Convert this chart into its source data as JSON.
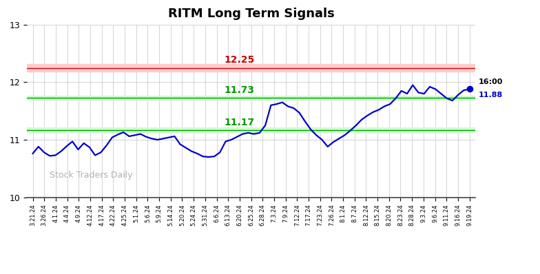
{
  "title": "RITM Long Term Signals",
  "ylim": [
    10,
    13
  ],
  "yticks": [
    10,
    11,
    12,
    13
  ],
  "resistance_level": 12.25,
  "support_level1": 11.73,
  "support_level2": 11.17,
  "last_price": 11.88,
  "last_time": "16:00",
  "resistance_color": "#cc0000",
  "support_color": "#009900",
  "resistance_band_color": "#ffcccc",
  "support_band_color": "#ccffcc",
  "line_color": "#0000cc",
  "dot_color": "#0000cc",
  "watermark": "Stock Traders Daily",
  "background_color": "#ffffff",
  "grid_color": "#cccccc",
  "x_labels": [
    "3.21.24",
    "3.26.24",
    "4.1.24",
    "4.4.24",
    "4.9.24",
    "4.12.24",
    "4.17.24",
    "4.22.24",
    "4.25.24",
    "5.1.24",
    "5.6.24",
    "5.9.24",
    "5.14.24",
    "5.20.24",
    "5.24.24",
    "5.31.24",
    "6.6.24",
    "6.13.24",
    "6.20.24",
    "6.25.24",
    "6.28.24",
    "7.3.24",
    "7.9.24",
    "7.12.24",
    "7.17.24",
    "7.23.24",
    "7.26.24",
    "8.1.24",
    "8.7.24",
    "8.12.24",
    "8.15.24",
    "8.20.24",
    "8.23.24",
    "8.28.24",
    "9.3.24",
    "9.6.24",
    "9.11.24",
    "9.16.24",
    "9.19.24"
  ],
  "y_values": [
    10.76,
    10.88,
    10.78,
    10.72,
    10.73,
    10.8,
    10.89,
    10.97,
    10.83,
    10.94,
    10.87,
    10.73,
    10.78,
    10.9,
    11.04,
    11.09,
    11.13,
    11.06,
    11.08,
    11.1,
    11.05,
    11.02,
    11.0,
    11.02,
    11.04,
    11.06,
    10.92,
    10.86,
    10.8,
    10.76,
    10.71,
    10.7,
    10.71,
    10.78,
    10.97,
    11.0,
    11.05,
    11.1,
    11.12,
    11.1,
    11.12,
    11.25,
    11.6,
    11.62,
    11.65,
    11.58,
    11.55,
    11.47,
    11.32,
    11.18,
    11.08,
    11.0,
    10.88,
    10.96,
    11.02,
    11.08,
    11.16,
    11.25,
    11.35,
    11.42,
    11.48,
    11.52,
    11.58,
    11.62,
    11.72,
    11.85,
    11.8,
    11.95,
    11.82,
    11.8,
    11.92,
    11.88,
    11.8,
    11.72,
    11.68,
    11.78,
    11.86,
    11.88
  ]
}
